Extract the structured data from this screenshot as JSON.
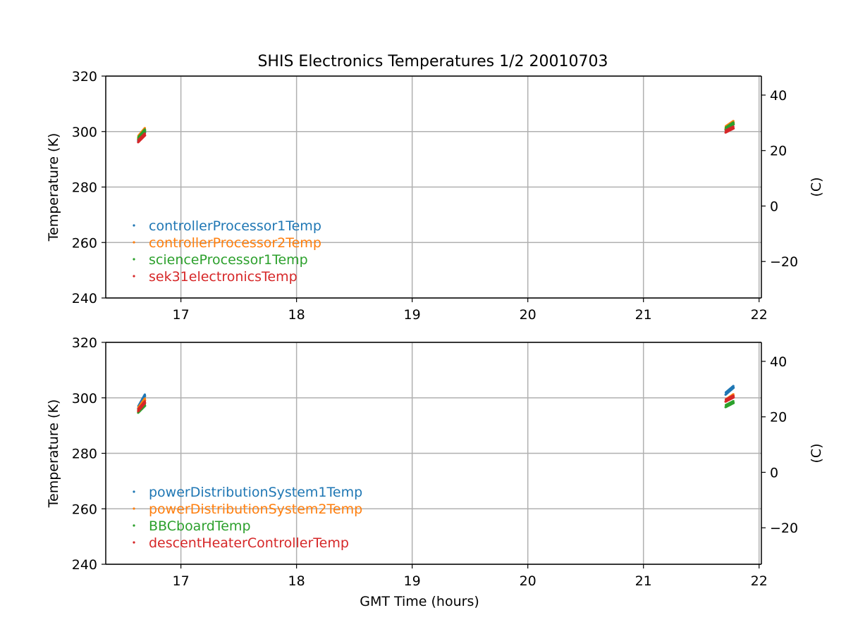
{
  "title": "SHIS Electronics Temperatures 1/2 20010703",
  "colors": {
    "blue": "#1f77b4",
    "orange": "#ff7f0e",
    "green": "#2ca02c",
    "red": "#d62728",
    "grid": "#b0b0b0",
    "axis": "#000000"
  },
  "chart_data": [
    {
      "type": "scatter",
      "title": "SHIS Electronics Temperatures 1/2 20010703",
      "xlabel": "",
      "ylabel": "Temperature (K)",
      "ylabel_right": "(C)",
      "xlim": [
        16.35,
        22.02
      ],
      "ylim": [
        240,
        320
      ],
      "xticks": [
        17,
        18,
        19,
        20,
        21,
        22
      ],
      "yticks": [
        240,
        260,
        280,
        300,
        320
      ],
      "yticks_right": [
        -20,
        0,
        20,
        40
      ],
      "grid": true,
      "legend_position": "lower-left",
      "series": [
        {
          "name": "controllerProcessor1Temp",
          "color": "#1f77b4",
          "segments": [
            {
              "x0": 16.63,
              "x1": 16.69,
              "y0": 297.0,
              "y1": 300.0
            },
            {
              "x0": 21.71,
              "x1": 21.78,
              "y0": 301.0,
              "y1": 303.0
            }
          ]
        },
        {
          "name": "controllerProcessor2Temp",
          "color": "#ff7f0e",
          "segments": [
            {
              "x0": 16.63,
              "x1": 16.69,
              "y0": 298.0,
              "y1": 301.0
            },
            {
              "x0": 21.71,
              "x1": 21.78,
              "y0": 301.5,
              "y1": 303.5
            }
          ]
        },
        {
          "name": "scienceProcessor1Temp",
          "color": "#2ca02c",
          "segments": [
            {
              "x0": 16.63,
              "x1": 16.69,
              "y0": 297.5,
              "y1": 300.5
            },
            {
              "x0": 21.71,
              "x1": 21.78,
              "y0": 301.0,
              "y1": 303.0
            }
          ]
        },
        {
          "name": "sek31electronicsTemp",
          "color": "#d62728",
          "segments": [
            {
              "x0": 16.63,
              "x1": 16.69,
              "y0": 296.5,
              "y1": 299.0
            },
            {
              "x0": 21.71,
              "x1": 21.78,
              "y0": 300.0,
              "y1": 301.5
            }
          ]
        }
      ]
    },
    {
      "type": "scatter",
      "title": "",
      "xlabel": "GMT Time (hours)",
      "ylabel": "Temperature (K)",
      "ylabel_right": "(C)",
      "xlim": [
        16.35,
        22.02
      ],
      "ylim": [
        240,
        320
      ],
      "xticks": [
        17,
        18,
        19,
        20,
        21,
        22
      ],
      "yticks": [
        240,
        260,
        280,
        300,
        320
      ],
      "yticks_right": [
        -20,
        0,
        20,
        40
      ],
      "grid": true,
      "legend_position": "lower-left",
      "series": [
        {
          "name": "powerDistributionSystem1Temp",
          "color": "#1f77b4",
          "segments": [
            {
              "x0": 16.63,
              "x1": 16.69,
              "y0": 296.5,
              "y1": 301.0
            },
            {
              "x0": 21.71,
              "x1": 21.78,
              "y0": 301.5,
              "y1": 304.0
            }
          ]
        },
        {
          "name": "powerDistributionSystem2Temp",
          "color": "#ff7f0e",
          "segments": [
            {
              "x0": 16.63,
              "x1": 16.69,
              "y0": 296.0,
              "y1": 299.5
            },
            {
              "x0": 21.71,
              "x1": 21.78,
              "y0": 299.0,
              "y1": 301.0
            }
          ]
        },
        {
          "name": "BBCboardTemp",
          "color": "#2ca02c",
          "segments": [
            {
              "x0": 16.63,
              "x1": 16.69,
              "y0": 295.0,
              "y1": 297.5
            },
            {
              "x0": 21.71,
              "x1": 21.78,
              "y0": 297.0,
              "y1": 298.5
            }
          ]
        },
        {
          "name": "descentHeaterControllerTemp",
          "color": "#d62728",
          "segments": [
            {
              "x0": 16.63,
              "x1": 16.69,
              "y0": 295.5,
              "y1": 298.5
            },
            {
              "x0": 21.71,
              "x1": 21.78,
              "y0": 299.0,
              "y1": 300.5
            }
          ]
        }
      ]
    }
  ]
}
